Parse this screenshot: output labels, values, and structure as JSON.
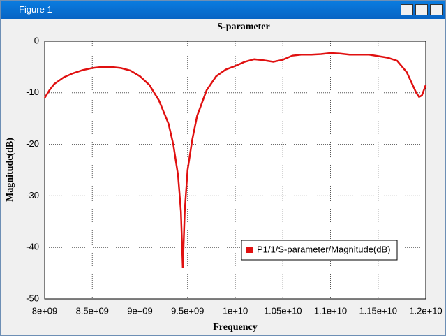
{
  "window": {
    "title": "Figure 1"
  },
  "chart_data": {
    "type": "line",
    "title": "S-parameter",
    "x_label": "Frequency",
    "y_label": "Magnitude(dB)",
    "x": [
      8000000000,
      8050000000,
      8100000000,
      8200000000,
      8300000000,
      8400000000,
      8500000000,
      8600000000,
      8700000000,
      8800000000,
      8900000000,
      9000000000,
      9100000000,
      9200000000,
      9300000000,
      9350000000,
      9400000000,
      9430000000,
      9450000000,
      9470000000,
      9500000000,
      9550000000,
      9600000000,
      9700000000,
      9800000000,
      9900000000,
      10000000000,
      10100000000,
      10200000000,
      10300000000,
      10400000000,
      10500000000,
      10600000000,
      10700000000,
      10800000000,
      10900000000,
      11000000000,
      11100000000,
      11200000000,
      11300000000,
      11400000000,
      11500000000,
      11600000000,
      11700000000,
      11800000000,
      11900000000,
      11930000000,
      11960000000,
      12000000000
    ],
    "series": [
      {
        "name": "P1/1/S-parameter/Magnitude(dB)",
        "color": "#e01010",
        "values": [
          -11,
          -9.5,
          -8.3,
          -7,
          -6.2,
          -5.6,
          -5.2,
          -5.0,
          -5.0,
          -5.2,
          -5.7,
          -6.8,
          -8.5,
          -11.5,
          -16,
          -20,
          -26,
          -33,
          -44,
          -33,
          -25,
          -19,
          -14.5,
          -9.5,
          -6.8,
          -5.5,
          -4.8,
          -4.0,
          -3.5,
          -3.7,
          -4.0,
          -3.6,
          -2.8,
          -2.6,
          -2.6,
          -2.5,
          -2.3,
          -2.4,
          -2.6,
          -2.6,
          -2.6,
          -2.9,
          -3.2,
          -3.8,
          -6.0,
          -10.0,
          -10.8,
          -10.5,
          -8.5
        ]
      }
    ],
    "xlim": [
      8000000000,
      12000000000
    ],
    "xticks": [
      {
        "value": 8000000000,
        "label": "8e+09"
      },
      {
        "value": 8500000000,
        "label": "8.5e+09"
      },
      {
        "value": 9000000000,
        "label": "9e+09"
      },
      {
        "value": 9500000000,
        "label": "9.5e+09"
      },
      {
        "value": 10000000000,
        "label": "1e+10"
      },
      {
        "value": 10500000000,
        "label": "1.05e+10"
      },
      {
        "value": 11000000000,
        "label": "1.1e+10"
      },
      {
        "value": 11500000000,
        "label": "1.15e+10"
      },
      {
        "value": 12000000000,
        "label": "1.2e+10"
      }
    ],
    "ylim": [
      -50,
      0
    ],
    "yticks": [
      -50,
      -40,
      -30,
      -20,
      -10,
      0
    ],
    "grid": true
  }
}
